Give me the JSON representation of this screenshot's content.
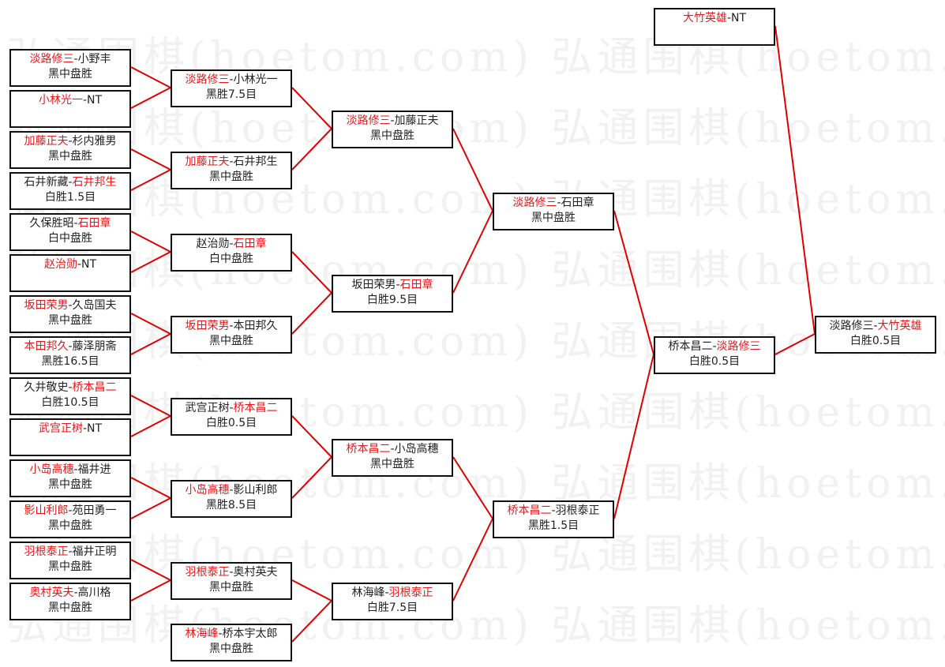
{
  "watermark": "弘通围棋(hoetom.com)",
  "colors": {
    "winner": "#e41a1a",
    "connector": "#e00000",
    "text": "#222222",
    "border": "#111111"
  },
  "separator": "-",
  "matches": [
    {
      "round": 1,
      "p1": "淡路修三",
      "p2": "小野丰",
      "winner": 1,
      "result": "黑中盘胜"
    },
    {
      "round": 1,
      "p1": "小林光一",
      "p2": "NT",
      "winner": 1,
      "result": ""
    },
    {
      "round": 1,
      "p1": "加藤正夫",
      "p2": "杉内雅男",
      "winner": 1,
      "result": "黑中盘胜"
    },
    {
      "round": 1,
      "p1": "石井新藏",
      "p2": "石井邦生",
      "winner": 2,
      "result": "白胜1.5目"
    },
    {
      "round": 1,
      "p1": "久保胜昭",
      "p2": "石田章",
      "winner": 2,
      "result": "白中盘胜"
    },
    {
      "round": 1,
      "p1": "赵治勋",
      "p2": "NT",
      "winner": 1,
      "result": ""
    },
    {
      "round": 1,
      "p1": "坂田荣男",
      "p2": "久岛国夫",
      "winner": 1,
      "result": "黑中盘胜"
    },
    {
      "round": 1,
      "p1": "本田邦久",
      "p2": "藤泽朋斋",
      "winner": 1,
      "result": "黑胜16.5目"
    },
    {
      "round": 1,
      "p1": "久井敬史",
      "p2": "桥本昌二",
      "winner": 2,
      "result": "白胜10.5目"
    },
    {
      "round": 1,
      "p1": "武宫正树",
      "p2": "NT",
      "winner": 1,
      "result": ""
    },
    {
      "round": 1,
      "p1": "小岛高穗",
      "p2": "福井进",
      "winner": 1,
      "result": "黑中盘胜"
    },
    {
      "round": 1,
      "p1": "影山利郎",
      "p2": "苑田勇一",
      "winner": 1,
      "result": "黑中盘胜"
    },
    {
      "round": 1,
      "p1": "羽根泰正",
      "p2": "福井正明",
      "winner": 1,
      "result": "黑中盘胜"
    },
    {
      "round": 1,
      "p1": "奥村英夫",
      "p2": "高川格",
      "winner": 1,
      "result": "黑中盘胜"
    },
    {
      "round": 2,
      "p1": "淡路修三",
      "p2": "小林光一",
      "winner": 1,
      "result": "黑胜7.5目"
    },
    {
      "round": 2,
      "p1": "加藤正夫",
      "p2": "石井邦生",
      "winner": 1,
      "result": "黑中盘胜"
    },
    {
      "round": 2,
      "p1": "赵治勋",
      "p2": "石田章",
      "winner": 2,
      "result": "白中盘胜"
    },
    {
      "round": 2,
      "p1": "坂田荣男",
      "p2": "本田邦久",
      "winner": 1,
      "result": "黑中盘胜"
    },
    {
      "round": 2,
      "p1": "武宫正树",
      "p2": "桥本昌二",
      "winner": 2,
      "result": "白胜0.5目"
    },
    {
      "round": 2,
      "p1": "小岛高穗",
      "p2": "影山利郎",
      "winner": 1,
      "result": "黑胜8.5目"
    },
    {
      "round": 2,
      "p1": "羽根泰正",
      "p2": "奥村英夫",
      "winner": 1,
      "result": "黑中盘胜"
    },
    {
      "round": 2,
      "p1": "林海峰",
      "p2": "桥本宇太郎",
      "winner": 1,
      "result": "黑中盘胜"
    },
    {
      "round": 3,
      "p1": "淡路修三",
      "p2": "加藤正夫",
      "winner": 1,
      "result": "黑中盘胜"
    },
    {
      "round": 3,
      "p1": "坂田荣男",
      "p2": "石田章",
      "winner": 2,
      "result": "白胜9.5目"
    },
    {
      "round": 3,
      "p1": "桥本昌二",
      "p2": "小岛高穗",
      "winner": 1,
      "result": "黑中盘胜"
    },
    {
      "round": 3,
      "p1": "林海峰",
      "p2": "羽根泰正",
      "winner": 2,
      "result": "白胜7.5目"
    },
    {
      "round": 4,
      "p1": "淡路修三",
      "p2": "石田章",
      "winner": 1,
      "result": "黑中盘胜"
    },
    {
      "round": 4,
      "p1": "桥本昌二",
      "p2": "羽根泰正",
      "winner": 1,
      "result": "黑胜1.5目"
    },
    {
      "round": 5,
      "p1": "桥本昌二",
      "p2": "淡路修三",
      "winner": 2,
      "result": "白胜0.5目"
    },
    {
      "round": 5,
      "p1": "大竹英雄",
      "p2": "NT",
      "winner": 1,
      "result": ""
    },
    {
      "round": 6,
      "p1": "淡路修三",
      "p2": "大竹英雄",
      "winner": 2,
      "result": "白胜0.5目"
    }
  ]
}
